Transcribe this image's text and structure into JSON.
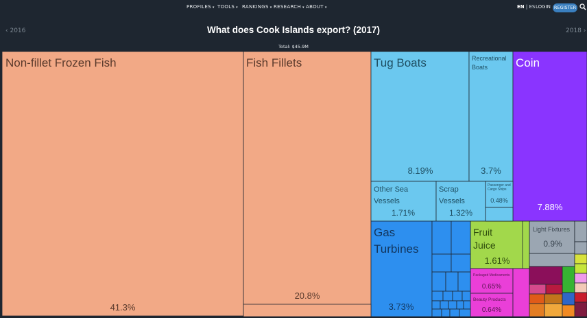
{
  "nav": {
    "items": [
      "PROFILES",
      "TOOLS",
      "RANKINGS",
      "RESEARCH",
      "ABOUT"
    ],
    "lang_en": "EN",
    "lang_sep": "|",
    "lang_es": "ES",
    "login": "LOGIN",
    "register": "REGISTER"
  },
  "year_prev": "2016",
  "year_next": "2018",
  "chart_data": {
    "type": "treemap",
    "title": "What does Cook Islands export? (2017)",
    "total": "Total: $45.9M",
    "colors": {
      "animal": "#f2a986",
      "transport": "#6bc8ef",
      "precious": "#8a34ff",
      "machines": "#2d8fef",
      "foodstuffs": "#a2d84b",
      "instruments": "#9ba6b2",
      "chemicals": "#ea3fd8",
      "misc": "#8b0f5a"
    },
    "items": [
      {
        "name": "Non-fillet Frozen Fish",
        "share": "41.3%",
        "category": "animal"
      },
      {
        "name": "Fish Fillets",
        "share": "20.8%",
        "category": "animal"
      },
      {
        "name": "Tug Boats",
        "share": "8.19%",
        "category": "transport"
      },
      {
        "name": "Recreational Boats",
        "share": "3.7%",
        "category": "transport"
      },
      {
        "name": "Coin",
        "share": "7.88%",
        "category": "precious"
      },
      {
        "name": "Other Sea Vessels",
        "share": "1.71%",
        "category": "transport"
      },
      {
        "name": "Scrap Vessels",
        "share": "1.32%",
        "category": "transport"
      },
      {
        "name": "Passenger and Cargo Ships",
        "share": "0.48%",
        "category": "transport"
      },
      {
        "name": "Gas Turbines",
        "share": "3.73%",
        "category": "machines"
      },
      {
        "name": "Fruit Juice",
        "share": "1.61%",
        "category": "foodstuffs"
      },
      {
        "name": "Light Fixtures",
        "share": "0.9%",
        "category": "instruments"
      },
      {
        "name": "Packaged Medicaments",
        "share": "0.65%",
        "category": "chemicals"
      },
      {
        "name": "Beauty Products",
        "share": "0.64%",
        "category": "chemicals"
      }
    ]
  }
}
